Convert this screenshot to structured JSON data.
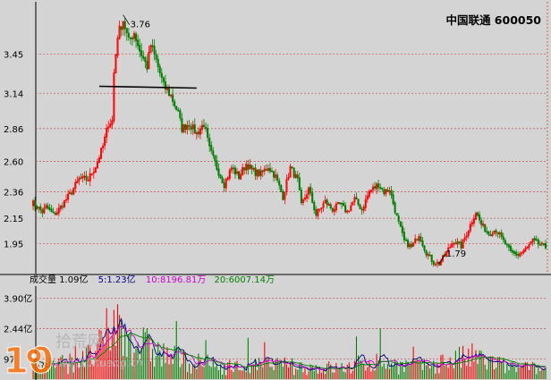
{
  "chart_data": [
    {
      "type": "candlestick",
      "title": "中国联通  600050",
      "y_ticks": [
        "3.45",
        "3.14",
        "2.86",
        "2.60",
        "2.36",
        "2.15",
        "1.95"
      ],
      "y_tick_values": [
        3.45,
        3.14,
        2.86,
        2.6,
        2.36,
        2.15,
        1.95
      ],
      "ylim": [
        1.74,
        3.85
      ],
      "grid": true,
      "annotations": [
        {
          "text": "3.76",
          "value": 3.76
        },
        {
          "text": "1.79",
          "value": 1.79
        }
      ],
      "horizontal_line": 3.195,
      "close_path": [
        [
          0,
          2.28
        ],
        [
          3,
          2.24
        ],
        [
          6,
          2.2
        ],
        [
          8,
          2.24
        ],
        [
          12,
          2.18
        ],
        [
          14,
          2.2
        ],
        [
          18,
          2.28
        ],
        [
          22,
          2.36
        ],
        [
          26,
          2.46
        ],
        [
          31,
          2.46
        ],
        [
          35,
          2.56
        ],
        [
          39,
          2.72
        ],
        [
          42,
          2.9
        ],
        [
          44,
          2.92
        ],
        [
          45,
          3.3
        ],
        [
          47,
          3.6
        ],
        [
          50,
          3.72
        ],
        [
          53,
          3.55
        ],
        [
          56,
          3.62
        ],
        [
          59,
          3.48
        ],
        [
          63,
          3.35
        ],
        [
          65,
          3.52
        ],
        [
          68,
          3.4
        ],
        [
          72,
          3.2
        ],
        [
          76,
          3.12
        ],
        [
          80,
          2.98
        ],
        [
          82,
          2.86
        ],
        [
          86,
          2.9
        ],
        [
          90,
          2.82
        ],
        [
          94,
          2.9
        ],
        [
          97,
          2.7
        ],
        [
          101,
          2.55
        ],
        [
          105,
          2.42
        ],
        [
          109,
          2.55
        ],
        [
          113,
          2.48
        ],
        [
          117,
          2.58
        ],
        [
          121,
          2.52
        ],
        [
          125,
          2.5
        ],
        [
          129,
          2.56
        ],
        [
          133,
          2.48
        ],
        [
          137,
          2.32
        ],
        [
          141,
          2.55
        ],
        [
          145,
          2.45
        ],
        [
          147,
          2.25
        ],
        [
          151,
          2.38
        ],
        [
          155,
          2.18
        ],
        [
          160,
          2.28
        ],
        [
          164,
          2.22
        ],
        [
          168,
          2.26
        ],
        [
          172,
          2.2
        ],
        [
          176,
          2.3
        ],
        [
          180,
          2.22
        ],
        [
          184,
          2.36
        ],
        [
          189,
          2.42
        ],
        [
          192,
          2.36
        ],
        [
          195,
          2.38
        ],
        [
          199,
          2.16
        ],
        [
          203,
          1.97
        ],
        [
          207,
          1.92
        ],
        [
          211,
          2.02
        ],
        [
          215,
          1.88
        ],
        [
          219,
          1.8
        ],
        [
          222,
          1.79
        ],
        [
          226,
          1.88
        ],
        [
          230,
          1.97
        ],
        [
          234,
          1.93
        ],
        [
          238,
          2.06
        ],
        [
          242,
          2.2
        ],
        [
          245,
          2.1
        ],
        [
          249,
          2.03
        ],
        [
          253,
          2.06
        ],
        [
          257,
          1.97
        ],
        [
          261,
          1.88
        ],
        [
          265,
          1.86
        ],
        [
          269,
          1.9
        ],
        [
          273,
          1.97
        ],
        [
          277,
          1.94
        ],
        [
          280,
          1.92
        ]
      ]
    },
    {
      "type": "bar",
      "title": "成交量",
      "legend": [
        {
          "name": "成交量",
          "value": "1.09亿",
          "color": "#000000"
        },
        {
          "name": "5",
          "value": "1.23亿",
          "color": "#000080"
        },
        {
          "name": "10",
          "value": "8196.81万",
          "color": "#cc00cc"
        },
        {
          "name": "20",
          "value": "6007.14万",
          "color": "#008000"
        }
      ],
      "y_ticks": [
        "3.90亿",
        "2.44亿",
        "97"
      ],
      "y_tick_values": [
        3.9,
        2.44,
        0.97
      ],
      "ylim": [
        0,
        4.4
      ],
      "volume_profile": [
        [
          0,
          0.7
        ],
        [
          20,
          0.8
        ],
        [
          35,
          1.2
        ],
        [
          45,
          2.8
        ],
        [
          50,
          2.4
        ],
        [
          60,
          1.7
        ],
        [
          75,
          1.1
        ],
        [
          90,
          0.8
        ],
        [
          110,
          0.6
        ],
        [
          130,
          0.7
        ],
        [
          150,
          0.6
        ],
        [
          170,
          0.55
        ],
        [
          185,
          0.9
        ],
        [
          200,
          0.7
        ],
        [
          215,
          0.6
        ],
        [
          225,
          0.9
        ],
        [
          240,
          1.1
        ],
        [
          260,
          0.6
        ],
        [
          280,
          0.5
        ]
      ]
    }
  ],
  "watermark": {
    "number": "10",
    "text": "拾荒网",
    "url": "www.10huang.cn"
  },
  "colors": {
    "up": "#ff0000",
    "down": "#008000",
    "grid": "#c06060",
    "background": "#d4d4d4",
    "ma5": "#000080",
    "ma10": "#cc00cc",
    "ma20": "#008000"
  }
}
